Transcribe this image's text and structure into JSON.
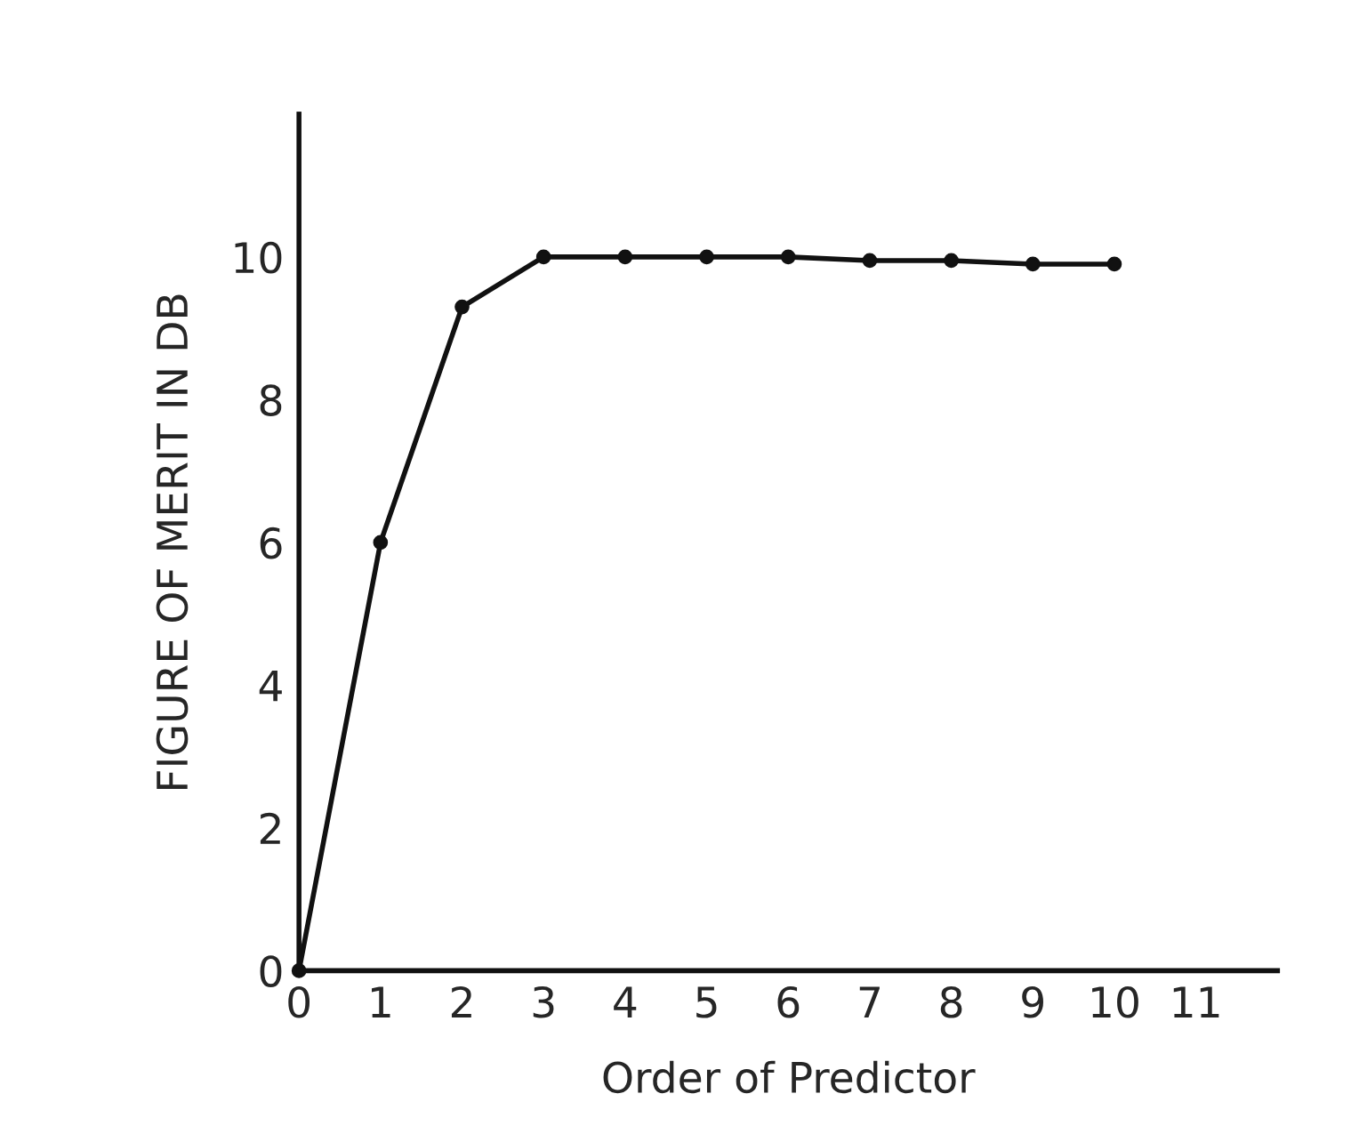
{
  "chart_data": {
    "type": "line",
    "xlabel": "Order of Predictor",
    "ylabel": "FIGURE OF MERIT IN DB",
    "x": [
      0,
      1,
      2,
      3,
      4,
      5,
      6,
      7,
      8,
      9,
      10
    ],
    "series": [
      {
        "color": "#111111",
        "values": [
          0,
          6,
          9.3,
          10,
          10,
          10,
          10,
          9.95,
          9.95,
          9.9,
          9.9
        ]
      }
    ],
    "xlim": [
      0,
      12
    ],
    "ylim": [
      0,
      12
    ],
    "xticks": [
      0,
      1,
      2,
      3,
      4,
      5,
      6,
      7,
      8,
      9,
      10,
      11
    ],
    "yticks": [
      0,
      2,
      4,
      6,
      8,
      10
    ],
    "grid": false,
    "legend": false,
    "marker": "circle",
    "line_style": "solid"
  }
}
